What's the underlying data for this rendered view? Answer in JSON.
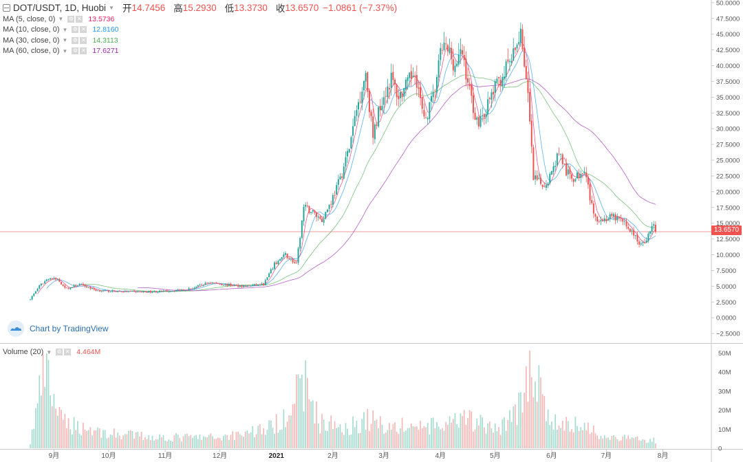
{
  "header": {
    "symbol": "DOT/USDT, 1D, Huobi",
    "ohlc": [
      {
        "label": "开",
        "value": "14.7456"
      },
      {
        "label": "高",
        "value": "15.2930"
      },
      {
        "label": "低",
        "value": "13.3730"
      },
      {
        "label": "收",
        "value": "13.6570"
      }
    ],
    "change": "−1.0861 (−7.37%)"
  },
  "indicators": [
    {
      "label": "MA (5, close, 0)",
      "value": "13.5736",
      "color": "#e91e63"
    },
    {
      "label": "MA (10, close, 0)",
      "value": "12.8160",
      "color": "#2196f3"
    },
    {
      "label": "MA (30, close, 0)",
      "value": "14.3113",
      "color": "#4caf50"
    },
    {
      "label": "MA (60, close, 0)",
      "value": "17.6271",
      "color": "#9c27b0"
    }
  ],
  "volume_indicator": {
    "label": "Volume (20)",
    "value": "4.464M"
  },
  "watermark": "Chart by TradingView",
  "last_price_tag": "13.6570",
  "colors": {
    "up": "#26a69a",
    "down": "#ef5350",
    "up_vol": "#a5dccf",
    "down_vol": "#f6b8b7"
  },
  "chart_data": {
    "type": "candlestick",
    "price_axis": {
      "ylim": [
        -3.8,
        50.2
      ],
      "ticks": [
        "50.0000",
        "47.5000",
        "45.0000",
        "42.5000",
        "40.0000",
        "37.5000",
        "35.0000",
        "32.5000",
        "30.0000",
        "27.5000",
        "25.0000",
        "22.5000",
        "20.0000",
        "17.5000",
        "15.0000",
        "12.5000",
        "10.0000",
        "7.5000",
        "5.0000",
        "2.5000",
        "0.0000",
        "−2.5000"
      ]
    },
    "volume_axis": {
      "ylim": [
        0,
        52
      ],
      "ticks": [
        {
          "v": 50,
          "label": "50M"
        },
        {
          "v": 40,
          "label": "40M"
        },
        {
          "v": 30,
          "label": "30M"
        },
        {
          "v": 20,
          "label": "20M"
        },
        {
          "v": 10,
          "label": "10M"
        },
        {
          "v": 0,
          "label": "0"
        }
      ]
    },
    "x_axis": {
      "start": "2020-08-19",
      "labels": [
        {
          "date": "2020-09-01",
          "label": "9月"
        },
        {
          "date": "2020-10-01",
          "label": "10月"
        },
        {
          "date": "2020-11-01",
          "label": "11月"
        },
        {
          "date": "2020-12-01",
          "label": "12月"
        },
        {
          "date": "2021-01-01",
          "label": "2021"
        },
        {
          "date": "2021-02-01",
          "label": "2月"
        },
        {
          "date": "2021-03-01",
          "label": "3月"
        },
        {
          "date": "2021-04-01",
          "label": "4月"
        },
        {
          "date": "2021-05-01",
          "label": "5月"
        },
        {
          "date": "2021-06-01",
          "label": "6月"
        },
        {
          "date": "2021-07-01",
          "label": "7月"
        },
        {
          "date": "2021-08-01",
          "label": "8月"
        }
      ]
    },
    "close_anchors": [
      [
        "2020-08-19",
        3.0
      ],
      [
        "2020-08-24",
        5.0
      ],
      [
        "2020-08-29",
        6.3
      ],
      [
        "2020-09-03",
        6.0
      ],
      [
        "2020-09-08",
        4.6
      ],
      [
        "2020-09-15",
        5.3
      ],
      [
        "2020-09-25",
        4.3
      ],
      [
        "2020-10-05",
        4.2
      ],
      [
        "2020-10-20",
        4.1
      ],
      [
        "2020-11-01",
        4.2
      ],
      [
        "2020-11-15",
        4.6
      ],
      [
        "2020-11-25",
        5.6
      ],
      [
        "2020-12-05",
        5.2
      ],
      [
        "2020-12-15",
        5.0
      ],
      [
        "2020-12-25",
        5.3
      ],
      [
        "2020-12-31",
        8.5
      ],
      [
        "2021-01-06",
        10.0
      ],
      [
        "2021-01-12",
        8.4
      ],
      [
        "2021-01-16",
        17.5
      ],
      [
        "2021-01-20",
        17.0
      ],
      [
        "2021-01-26",
        15.5
      ],
      [
        "2021-01-31",
        18.5
      ],
      [
        "2021-02-05",
        22.0
      ],
      [
        "2021-02-10",
        27.0
      ],
      [
        "2021-02-14",
        33.0
      ],
      [
        "2021-02-19",
        39.0
      ],
      [
        "2021-02-23",
        28.5
      ],
      [
        "2021-02-27",
        34.0
      ],
      [
        "2021-03-05",
        38.0
      ],
      [
        "2021-03-09",
        35.0
      ],
      [
        "2021-03-14",
        37.0
      ],
      [
        "2021-03-18",
        39.5
      ],
      [
        "2021-03-23",
        31.0
      ],
      [
        "2021-03-28",
        35.0
      ],
      [
        "2021-04-02",
        43.0
      ],
      [
        "2021-04-06",
        42.0
      ],
      [
        "2021-04-09",
        40.0
      ],
      [
        "2021-04-13",
        42.0
      ],
      [
        "2021-04-17",
        36.0
      ],
      [
        "2021-04-21",
        31.0
      ],
      [
        "2021-04-26",
        33.0
      ],
      [
        "2021-04-30",
        36.0
      ],
      [
        "2021-05-04",
        38.0
      ],
      [
        "2021-05-08",
        40.0
      ],
      [
        "2021-05-12",
        42.0
      ],
      [
        "2021-05-15",
        46.0
      ],
      [
        "2021-05-19",
        35.0
      ],
      [
        "2021-05-22",
        22.0
      ],
      [
        "2021-05-28",
        21.0
      ],
      [
        "2021-06-01",
        23.0
      ],
      [
        "2021-06-05",
        26.5
      ],
      [
        "2021-06-09",
        23.0
      ],
      [
        "2021-06-14",
        22.0
      ],
      [
        "2021-06-19",
        24.0
      ],
      [
        "2021-06-24",
        16.0
      ],
      [
        "2021-06-29",
        15.5
      ],
      [
        "2021-07-04",
        16.0
      ],
      [
        "2021-07-09",
        15.5
      ],
      [
        "2021-07-14",
        14.0
      ],
      [
        "2021-07-20",
        11.5
      ],
      [
        "2021-07-24",
        13.0
      ],
      [
        "2021-07-27",
        14.8
      ],
      [
        "2021-07-28",
        13.657
      ]
    ],
    "volume_anchors": [
      [
        "2020-08-19",
        3
      ],
      [
        "2020-08-24",
        30
      ],
      [
        "2020-08-27",
        42
      ],
      [
        "2020-09-05",
        15
      ],
      [
        "2020-09-15",
        12
      ],
      [
        "2020-10-01",
        8
      ],
      [
        "2020-11-01",
        6
      ],
      [
        "2020-12-01",
        6
      ],
      [
        "2020-12-31",
        12
      ],
      [
        "2021-01-06",
        20
      ],
      [
        "2021-01-11",
        28
      ],
      [
        "2021-01-17",
        36
      ],
      [
        "2021-01-25",
        14
      ],
      [
        "2021-02-10",
        12
      ],
      [
        "2021-02-20",
        16
      ],
      [
        "2021-03-05",
        12
      ],
      [
        "2021-04-01",
        12
      ],
      [
        "2021-04-18",
        16
      ],
      [
        "2021-05-01",
        10
      ],
      [
        "2021-05-12",
        20
      ],
      [
        "2021-05-17",
        28
      ],
      [
        "2021-05-20",
        44
      ],
      [
        "2021-05-22",
        48
      ],
      [
        "2021-05-26",
        28
      ],
      [
        "2021-06-01",
        14
      ],
      [
        "2021-06-20",
        12
      ],
      [
        "2021-07-01",
        6
      ],
      [
        "2021-07-20",
        5
      ],
      [
        "2021-07-28",
        4.5
      ]
    ],
    "ma_lines": [
      {
        "period": 5,
        "color": "#e91e63"
      },
      {
        "period": 10,
        "color": "#2196f3"
      },
      {
        "period": 30,
        "color": "#4caf50"
      },
      {
        "period": 60,
        "color": "#9c27b0"
      }
    ],
    "last_price": 13.657
  }
}
